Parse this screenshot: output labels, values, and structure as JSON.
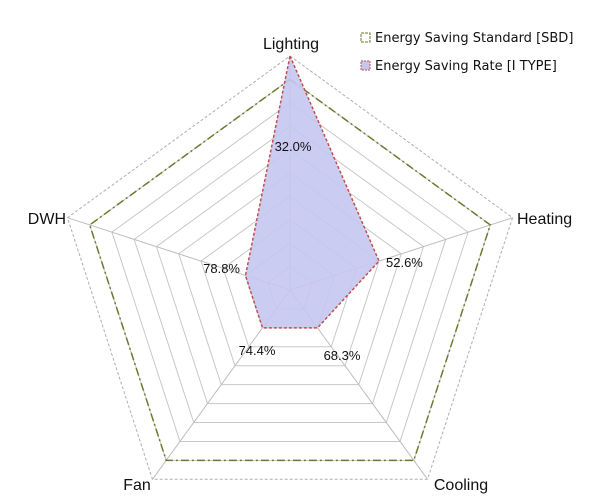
{
  "chart_data": {
    "type": "radar",
    "axes": [
      "Lighting",
      "Heating",
      "Cooling",
      "Fan",
      "DWH"
    ],
    "series": [
      {
        "name": "Energy Saving Standard [SBD]",
        "values": [
          90,
          90,
          90,
          90,
          90
        ],
        "line_color": "#6b7a2e",
        "line_style": "dash-dot",
        "fill": "none"
      },
      {
        "name": "Energy Saving Rate [I TYPE]",
        "values": [
          32.0,
          52.6,
          68.3,
          74.4,
          78.8
        ],
        "value_labels": [
          "32.0%",
          "52.6%",
          "68.3%",
          "74.4%",
          "78.8%"
        ],
        "line_color": "#c0504d",
        "line_style": "dashed",
        "fill": "#c5c6f0"
      }
    ],
    "display_radius": [
      100,
      40,
      20,
      20,
      20
    ],
    "rlim": [
      0,
      100
    ],
    "grid_rings": 10,
    "grid_color": "#c8c8c8",
    "legend_position": "top-right"
  }
}
